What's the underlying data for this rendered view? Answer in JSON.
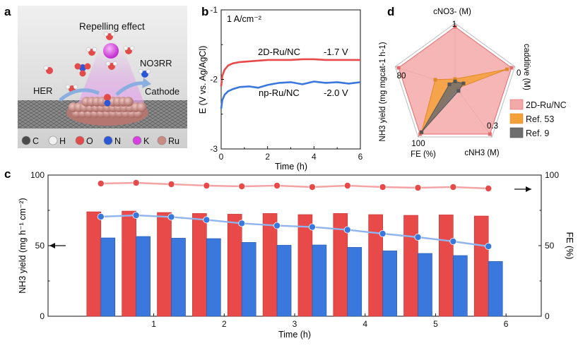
{
  "colors": {
    "red": "#e84a4a",
    "red_light": "#f3a3a3",
    "blue": "#3a78dd",
    "blue_light": "#8fb4ee",
    "orange": "#f5a13a",
    "gray": "#6e6e6e",
    "pink_fill": "#f4a9a9"
  },
  "panel_a": {
    "label": "a",
    "title": "Repelling effect",
    "no3rr": "NO3RR",
    "her": "HER",
    "cathode": "Cathode",
    "legend": [
      {
        "sym": "C",
        "color": "#4a4a4a"
      },
      {
        "sym": "H",
        "color": "#f1f1f1"
      },
      {
        "sym": "O",
        "color": "#e34b4b"
      },
      {
        "sym": "N",
        "color": "#2b58d6"
      },
      {
        "sym": "K",
        "color": "#d83fe0"
      },
      {
        "sym": "Ru",
        "color": "#c98a84"
      }
    ]
  },
  "chart_data": [
    {
      "id": "b",
      "panel_label": "b",
      "type": "line",
      "annotation": "1 A/cm⁻²",
      "xlabel": "Time (h)",
      "ylabel": "E (V vs. Ag/AgCl)",
      "xlim": [
        0,
        6
      ],
      "ylim": [
        -3,
        -1
      ],
      "xticks": [
        "0",
        "2",
        "4",
        "6"
      ],
      "yticks": [
        "-1",
        "-2",
        "-3"
      ],
      "series": [
        {
          "name": "2D-Ru/NC",
          "value_label": "-1.7 V",
          "color": "#e84a4a",
          "x": [
            0,
            0.05,
            0.15,
            0.3,
            0.5,
            0.8,
            1.2,
            1.6,
            2,
            2.5,
            3,
            3.5,
            4,
            4.5,
            5,
            5.5,
            6
          ],
          "y": [
            -2.1,
            -1.95,
            -1.86,
            -1.8,
            -1.77,
            -1.75,
            -1.74,
            -1.73,
            -1.72,
            -1.72,
            -1.72,
            -1.71,
            -1.71,
            -1.72,
            -1.72,
            -1.72,
            -1.72
          ]
        },
        {
          "name": "np-Ru/NC",
          "value_label": "-2.0 V",
          "color": "#3a78dd",
          "x": [
            0,
            0.05,
            0.15,
            0.3,
            0.5,
            0.8,
            1.2,
            1.6,
            2,
            2.5,
            3,
            3.5,
            4,
            4.5,
            5,
            5.5,
            6
          ],
          "y": [
            -2.42,
            -2.3,
            -2.22,
            -2.17,
            -2.14,
            -2.11,
            -2.1,
            -2.12,
            -2.08,
            -2.05,
            -2.04,
            -2.07,
            -2.03,
            -2.05,
            -2.04,
            -2.06,
            -2.04
          ]
        }
      ]
    },
    {
      "id": "c",
      "panel_label": "c",
      "type": "bar",
      "xlabel": "Time (h)",
      "ylabel_left": "NH3 yield (mg h⁻¹ cm⁻²)",
      "ylabel_right": "FE (%)",
      "x": [
        0.25,
        0.75,
        1.25,
        1.75,
        2.25,
        2.75,
        3.25,
        3.75,
        4.25,
        4.75,
        5.25,
        5.75
      ],
      "xlim": [
        -0.5,
        6.5
      ],
      "ylim": [
        0,
        100
      ],
      "xticks": [
        "1",
        "2",
        "3",
        "4",
        "5",
        "6"
      ],
      "yticks": [
        "0",
        "50",
        "100"
      ],
      "series": [
        {
          "name": "2D-Ru/NC yield",
          "color": "#e84a4a",
          "values": [
            74,
            74.5,
            73.5,
            72.8,
            72.3,
            72.8,
            72,
            72.8,
            72,
            71.5,
            71.8,
            71
          ]
        },
        {
          "name": "np-Ru/NC yield",
          "color": "#3a78dd",
          "values": [
            55.5,
            56.5,
            55.3,
            55,
            52.3,
            50.3,
            50.5,
            48.8,
            46.3,
            44.5,
            43,
            38.8
          ]
        },
        {
          "name": "2D-Ru/NC FE",
          "color": "#e84a4a",
          "values": [
            94,
            94.5,
            93.5,
            92.5,
            92,
            92.5,
            91.5,
            92.5,
            91.5,
            91,
            91.5,
            90.5
          ]
        },
        {
          "name": "np-Ru/NC FE",
          "color": "#3a78dd",
          "values": [
            70.5,
            71.5,
            70.3,
            68.3,
            65.8,
            64.2,
            63.2,
            61.2,
            58.5,
            56,
            53,
            49.5
          ]
        }
      ]
    },
    {
      "id": "d",
      "panel_label": "d",
      "type": "radar",
      "axes": [
        {
          "label": "cNO3- (M)",
          "tick": "1"
        },
        {
          "label": "cadditive (M)",
          "tick": "0"
        },
        {
          "label": "cNH3 (M)",
          "tick": "0.3"
        },
        {
          "label": "FE (%)",
          "tick": "100"
        },
        {
          "label": "NH3 yield (mg mgcat-1 h-1)",
          "tick": "80"
        }
      ],
      "series": [
        {
          "name": "2D-Ru/NC",
          "color": "#f4a9a9",
          "values": [
            1,
            1,
            1,
            1,
            1
          ]
        },
        {
          "name": "Ref. 53",
          "color": "#f5a13a",
          "values": [
            0.12,
            0.92,
            0.05,
            0.96,
            0.35
          ]
        },
        {
          "name": "Ref. 9",
          "color": "#6e6e6e",
          "values": [
            0.08,
            0.15,
            0.1,
            0.96,
            0.1
          ]
        }
      ]
    }
  ]
}
